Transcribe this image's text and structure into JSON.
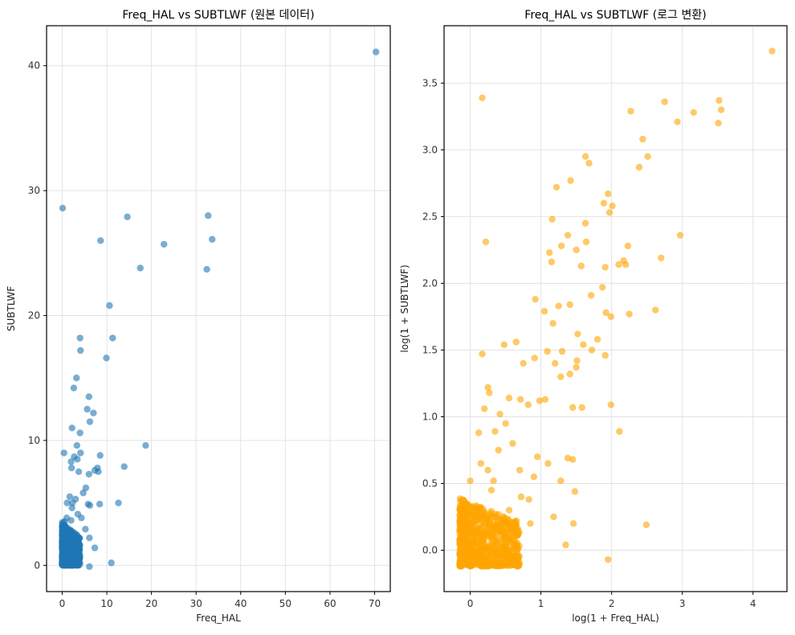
{
  "chart_data": [
    {
      "type": "scatter",
      "title": "Freq_HAL vs SUBTLWF (원본 데이터)",
      "xlabel": "Freq_HAL",
      "ylabel": "SUBTLWF",
      "xlim": [
        -3.5,
        73.5
      ],
      "ylim": [
        -2.1,
        43.2
      ],
      "xticks": [
        0,
        10,
        20,
        30,
        40,
        50,
        60,
        70
      ],
      "yticks": [
        0,
        10,
        20,
        30,
        40
      ],
      "xtick_labels": [
        "0",
        "10",
        "20",
        "30",
        "40",
        "50",
        "60",
        "70"
      ],
      "ytick_labels": [
        "0",
        "10",
        "20",
        "30",
        "40"
      ],
      "grid": true,
      "color": "#1f77b4",
      "alpha": 0.6,
      "points": [
        [
          70.3,
          41.1
        ],
        [
          0.1,
          28.6
        ],
        [
          14.6,
          27.9
        ],
        [
          32.7,
          28.0
        ],
        [
          33.6,
          26.1
        ],
        [
          8.6,
          26.0
        ],
        [
          22.8,
          25.7
        ],
        [
          17.5,
          23.8
        ],
        [
          32.4,
          23.7
        ],
        [
          10.6,
          20.8
        ],
        [
          11.3,
          18.2
        ],
        [
          4.0,
          18.2
        ],
        [
          4.1,
          17.2
        ],
        [
          9.9,
          16.6
        ],
        [
          3.2,
          15.0
        ],
        [
          2.6,
          14.2
        ],
        [
          6.0,
          13.5
        ],
        [
          5.6,
          12.5
        ],
        [
          7.0,
          12.2
        ],
        [
          6.2,
          11.5
        ],
        [
          2.2,
          11.0
        ],
        [
          4.0,
          10.6
        ],
        [
          0.4,
          9.0
        ],
        [
          3.3,
          9.6
        ],
        [
          2.0,
          8.3
        ],
        [
          2.7,
          8.7
        ],
        [
          18.7,
          9.6
        ],
        [
          8.5,
          8.8
        ],
        [
          4.1,
          9.0
        ],
        [
          3.4,
          8.5
        ],
        [
          2.1,
          7.8
        ],
        [
          3.7,
          7.5
        ],
        [
          7.9,
          7.8
        ],
        [
          8.1,
          7.5
        ],
        [
          6.0,
          7.3
        ],
        [
          7.3,
          7.6
        ],
        [
          13.9,
          7.9
        ],
        [
          1.1,
          5.0
        ],
        [
          2.3,
          5.0
        ],
        [
          5.3,
          6.2
        ],
        [
          4.7,
          5.8
        ],
        [
          1.7,
          5.5
        ],
        [
          3.0,
          5.3
        ],
        [
          12.6,
          5.0
        ],
        [
          5.8,
          4.9
        ],
        [
          6.2,
          4.8
        ],
        [
          8.4,
          4.9
        ],
        [
          2.2,
          4.6
        ],
        [
          0.5,
          3.5
        ],
        [
          1.0,
          3.8
        ],
        [
          6.1,
          2.2
        ],
        [
          6.1,
          -0.1
        ],
        [
          11.0,
          0.2
        ],
        [
          7.3,
          1.4
        ],
        [
          5.2,
          2.9
        ],
        [
          4.3,
          3.8
        ],
        [
          3.5,
          4.1
        ],
        [
          2.0,
          3.6
        ]
      ],
      "dense_region": {
        "x": [
          0,
          4
        ],
        "y": [
          0,
          3.5
        ]
      }
    },
    {
      "type": "scatter",
      "title": "Freq_HAL vs SUBTLWF (로그 변환)",
      "xlabel": "log(1 + Freq_HAL)",
      "ylabel": "log(1 + SUBTLWF)",
      "xlim": [
        -0.37,
        4.48
      ],
      "ylim": [
        -0.31,
        3.93
      ],
      "xticks": [
        0,
        1,
        2,
        3,
        4
      ],
      "yticks": [
        0.0,
        0.5,
        1.0,
        1.5,
        2.0,
        2.5,
        3.0,
        3.5
      ],
      "xtick_labels": [
        "0",
        "1",
        "2",
        "3",
        "4"
      ],
      "ytick_labels": [
        "0.0",
        "0.5",
        "1.0",
        "1.5",
        "2.0",
        "2.5",
        "3.0",
        "3.5"
      ],
      "grid": true,
      "color": "#ffa500",
      "alpha": 0.6,
      "points": [
        [
          4.27,
          3.74
        ],
        [
          0.17,
          3.39
        ],
        [
          2.75,
          3.36
        ],
        [
          3.52,
          3.37
        ],
        [
          3.55,
          3.3
        ],
        [
          2.27,
          3.29
        ],
        [
          3.16,
          3.28
        ],
        [
          2.93,
          3.21
        ],
        [
          3.51,
          3.2
        ],
        [
          2.44,
          3.08
        ],
        [
          1.63,
          2.95
        ],
        [
          2.51,
          2.95
        ],
        [
          1.68,
          2.9
        ],
        [
          2.39,
          2.87
        ],
        [
          1.42,
          2.77
        ],
        [
          1.22,
          2.72
        ],
        [
          1.95,
          2.67
        ],
        [
          1.89,
          2.6
        ],
        [
          2.01,
          2.58
        ],
        [
          1.97,
          2.53
        ],
        [
          1.16,
          2.48
        ],
        [
          1.63,
          2.45
        ],
        [
          1.38,
          2.36
        ],
        [
          2.97,
          2.36
        ],
        [
          0.22,
          2.31
        ],
        [
          1.64,
          2.31
        ],
        [
          1.29,
          2.28
        ],
        [
          2.23,
          2.28
        ],
        [
          1.5,
          2.25
        ],
        [
          1.12,
          2.23
        ],
        [
          1.15,
          2.16
        ],
        [
          2.7,
          2.19
        ],
        [
          2.17,
          2.17
        ],
        [
          2.2,
          2.14
        ],
        [
          2.1,
          2.14
        ],
        [
          1.57,
          2.13
        ],
        [
          1.91,
          2.12
        ],
        [
          1.71,
          1.91
        ],
        [
          1.87,
          1.97
        ],
        [
          0.92,
          1.88
        ],
        [
          1.25,
          1.83
        ],
        [
          1.41,
          1.84
        ],
        [
          2.62,
          1.8
        ],
        [
          1.92,
          1.78
        ],
        [
          2.25,
          1.77
        ],
        [
          1.99,
          1.75
        ],
        [
          1.05,
          1.79
        ],
        [
          1.17,
          1.7
        ],
        [
          1.52,
          1.62
        ],
        [
          1.8,
          1.58
        ],
        [
          1.91,
          1.46
        ],
        [
          1.6,
          1.54
        ],
        [
          1.72,
          1.5
        ],
        [
          1.3,
          1.49
        ],
        [
          0.17,
          1.47
        ],
        [
          0.65,
          1.56
        ],
        [
          0.48,
          1.54
        ],
        [
          1.09,
          1.49
        ],
        [
          1.51,
          1.42
        ],
        [
          1.5,
          1.37
        ],
        [
          1.2,
          1.4
        ],
        [
          0.91,
          1.44
        ],
        [
          1.41,
          1.32
        ],
        [
          1.28,
          1.3
        ],
        [
          0.75,
          1.4
        ],
        [
          1.06,
          1.13
        ],
        [
          0.98,
          1.12
        ],
        [
          0.27,
          1.18
        ],
        [
          0.25,
          1.22
        ],
        [
          0.55,
          1.14
        ],
        [
          0.82,
          1.09
        ],
        [
          1.99,
          1.09
        ],
        [
          0.2,
          1.06
        ],
        [
          1.45,
          1.07
        ],
        [
          1.58,
          1.07
        ],
        [
          2.11,
          0.89
        ],
        [
          0.35,
          0.89
        ],
        [
          0.5,
          0.95
        ],
        [
          0.42,
          1.02
        ],
        [
          0.71,
          1.13
        ],
        [
          0.6,
          0.8
        ],
        [
          0.12,
          0.88
        ],
        [
          0.95,
          0.7
        ],
        [
          1.38,
          0.69
        ],
        [
          0.33,
          0.52
        ],
        [
          0.0,
          0.52
        ],
        [
          1.45,
          0.68
        ],
        [
          1.1,
          0.65
        ],
        [
          1.28,
          0.52
        ],
        [
          1.48,
          0.44
        ],
        [
          0.72,
          0.4
        ],
        [
          0.83,
          0.38
        ],
        [
          1.46,
          0.2
        ],
        [
          1.18,
          0.25
        ],
        [
          1.35,
          0.04
        ],
        [
          2.49,
          0.19
        ],
        [
          1.95,
          -0.07
        ],
        [
          0.55,
          0.3
        ],
        [
          0.62,
          0.18
        ],
        [
          0.85,
          0.2
        ],
        [
          0.5,
          0.1
        ],
        [
          0.3,
          0.45
        ],
        [
          0.15,
          0.65
        ],
        [
          0.4,
          0.75
        ],
        [
          0.25,
          0.6
        ],
        [
          0.7,
          0.6
        ],
        [
          0.9,
          0.55
        ]
      ],
      "dense_region": {
        "x": [
          -0.15,
          0.7
        ],
        "y": [
          -0.12,
          0.4
        ]
      }
    }
  ]
}
